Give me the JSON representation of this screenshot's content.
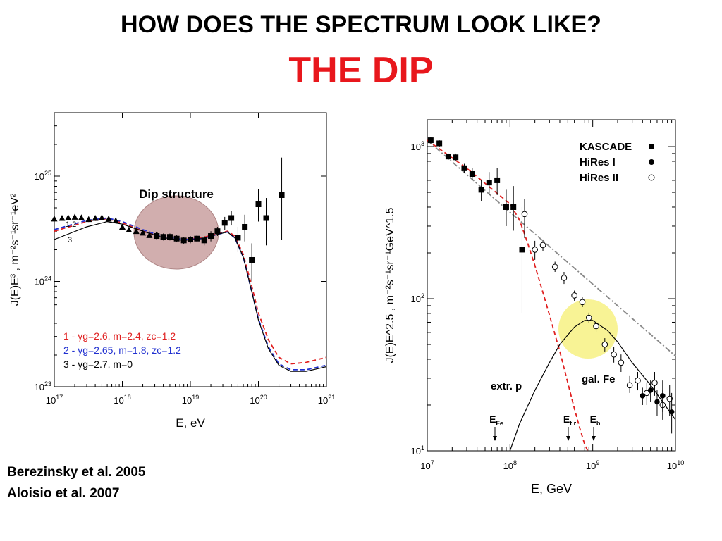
{
  "slide": {
    "title": "HOW DOES THE SPECTRUM LOOK LIKE?",
    "subtitle": "THE DIP",
    "citations": [
      "Berezinsky et al. 2005",
      "Aloisio et al. 2007"
    ]
  },
  "colors": {
    "subtitle": "#e8171c",
    "highlight_left": "#c9a0a0",
    "highlight_right": "#f7f28a",
    "red_curve": "#e02020",
    "blue_curve": "#2030d0"
  },
  "chart_data": [
    {
      "type": "line",
      "xlabel": "E, eV",
      "ylabel": "J(E)E³ , m⁻²s⁻¹sr⁻¹eV²",
      "xscale": "log",
      "yscale": "log",
      "xlim": [
        1e+17,
        1e+21
      ],
      "ylim": [
        1e+23,
        4e+25
      ],
      "x_ticks": [
        "10¹⁷",
        "10¹⁸",
        "10¹⁹",
        "10²⁰",
        "10²¹"
      ],
      "y_ticks": [
        "10²³",
        "10²⁴",
        "10²⁵"
      ],
      "annotation": "Dip structure",
      "curve_labels": [
        "1.2",
        "3"
      ],
      "legend": [
        {
          "name": "1 - γg=2.6, m=2.4, zc=1.2",
          "color": "#e02020"
        },
        {
          "name": "2 - γg=2.65, m=1.8, zc=1.2",
          "color": "#2030d0"
        },
        {
          "name": "3 - γg=2.7, m=0",
          "color": "#000000"
        }
      ],
      "series": [
        {
          "name": "1 - γg=2.6, m=2.4, zc=1.2",
          "style": "dashed",
          "color": "#e02020",
          "points": [
            [
              1e+17,
              3e+24
            ],
            [
              3e+17,
              3.7e+24
            ],
            [
              6e+17,
              3.95e+24
            ],
            [
              1e+18,
              3.6e+24
            ],
            [
              2e+18,
              3e+24
            ],
            [
              4e+18,
              2.6e+24
            ],
            [
              8e+18,
              2.5e+24
            ],
            [
              1.5e+19,
              2.6e+24
            ],
            [
              2.5e+19,
              2.85e+24
            ],
            [
              3.5e+19,
              3e+24
            ],
            [
              4.5e+19,
              2.7e+24
            ],
            [
              6e+19,
              1.8e+24
            ],
            [
              8e+19,
              9e+23
            ],
            [
              1e+20,
              5e+23
            ],
            [
              1.4e+20,
              2.8e+23
            ],
            [
              2e+20,
              1.9e+23
            ],
            [
              3e+20,
              1.65e+23
            ],
            [
              5e+20,
              1.7e+23
            ],
            [
              1e+21,
              1.9e+23
            ]
          ]
        },
        {
          "name": "2 - γg=2.65, m=1.8, zc=1.2",
          "style": "dashed",
          "color": "#2030d0",
          "points": [
            [
              1e+17,
              3.1e+24
            ],
            [
              3e+17,
              3.8e+24
            ],
            [
              6e+17,
              4e+24
            ],
            [
              1e+18,
              3.7e+24
            ],
            [
              2e+18,
              3.1e+24
            ],
            [
              4e+18,
              2.65e+24
            ],
            [
              8e+18,
              2.5e+24
            ],
            [
              1.5e+19,
              2.55e+24
            ],
            [
              2.5e+19,
              2.8e+24
            ],
            [
              3.5e+19,
              2.95e+24
            ],
            [
              4.5e+19,
              2.6e+24
            ],
            [
              6e+19,
              1.7e+24
            ],
            [
              8e+19,
              8e+23
            ],
            [
              1e+20,
              4.4e+23
            ],
            [
              1.4e+20,
              2.4e+23
            ],
            [
              2e+20,
              1.65e+23
            ],
            [
              3e+20,
              1.45e+23
            ],
            [
              5e+20,
              1.45e+23
            ],
            [
              1e+21,
              1.6e+23
            ]
          ]
        },
        {
          "name": "3 - γg=2.7, m=0",
          "style": "solid",
          "color": "#000000",
          "points": [
            [
              1e+17,
              2.5e+24
            ],
            [
              3e+17,
              3.3e+24
            ],
            [
              6e+17,
              3.7e+24
            ],
            [
              1e+18,
              3.5e+24
            ],
            [
              2e+18,
              3e+24
            ],
            [
              4e+18,
              2.6e+24
            ],
            [
              8e+18,
              2.45e+24
            ],
            [
              1.5e+19,
              2.55e+24
            ],
            [
              2.5e+19,
              2.8e+24
            ],
            [
              3.5e+19,
              2.95e+24
            ],
            [
              4.5e+19,
              2.6e+24
            ],
            [
              6e+19,
              1.7e+24
            ],
            [
              8e+19,
              8e+23
            ],
            [
              1e+20,
              4.3e+23
            ],
            [
              1.4e+20,
              2.3e+23
            ],
            [
              2e+20,
              1.6e+23
            ],
            [
              3e+20,
              1.4e+23
            ],
            [
              5e+20,
              1.4e+23
            ],
            [
              1e+21,
              1.55e+23
            ]
          ]
        }
      ],
      "data_triangles": [
        [
          1e+17,
          3.95e+24
        ],
        [
          1.3e+17,
          4e+24
        ],
        [
          1.6e+17,
          4.05e+24
        ],
        [
          2e+17,
          4.1e+24
        ],
        [
          2.5e+17,
          4.05e+24
        ],
        [
          3.2e+17,
          3.9e+24
        ],
        [
          4e+17,
          4e+24
        ],
        [
          5e+17,
          4.05e+24
        ],
        [
          6.3e+17,
          3.95e+24
        ],
        [
          8e+17,
          3.8e+24
        ],
        [
          1e+18,
          3.3e+24
        ],
        [
          1.25e+18,
          3.1e+24
        ],
        [
          1.6e+18,
          3e+24
        ],
        [
          2e+18,
          2.9e+24
        ],
        [
          2.5e+18,
          2.75e+24
        ],
        [
          3.2e+18,
          2.8e+24
        ]
      ],
      "data_squares": [
        {
          "x": 3.2e+18,
          "y": 2.7e+24,
          "lo": 2.5e+24,
          "hi": 2.9e+24
        },
        {
          "x": 4e+18,
          "y": 2.65e+24,
          "lo": 2.45e+24,
          "hi": 2.85e+24
        },
        {
          "x": 5e+18,
          "y": 2.65e+24,
          "lo": 2.45e+24,
          "hi": 2.85e+24
        },
        {
          "x": 6.3e+18,
          "y": 2.55e+24,
          "lo": 2.35e+24,
          "hi": 2.75e+24
        },
        {
          "x": 8e+18,
          "y": 2.45e+24,
          "lo": 2.25e+24,
          "hi": 2.65e+24
        },
        {
          "x": 1e+19,
          "y": 2.5e+24,
          "lo": 2.3e+24,
          "hi": 2.7e+24
        },
        {
          "x": 1.25e+19,
          "y": 2.55e+24,
          "lo": 2.35e+24,
          "hi": 2.75e+24
        },
        {
          "x": 1.6e+19,
          "y": 2.45e+24,
          "lo": 2.2e+24,
          "hi": 2.7e+24
        },
        {
          "x": 2e+19,
          "y": 2.7e+24,
          "lo": 2.4e+24,
          "hi": 3e+24
        },
        {
          "x": 2.5e+19,
          "y": 3e+24,
          "lo": 2.7e+24,
          "hi": 3.3e+24
        },
        {
          "x": 3.2e+19,
          "y": 3.6e+24,
          "lo": 3.1e+24,
          "hi": 4.1e+24
        },
        {
          "x": 4e+19,
          "y": 4e+24,
          "lo": 3.4e+24,
          "hi": 4.7e+24
        },
        {
          "x": 5e+19,
          "y": 2.6e+24,
          "lo": 1.9e+24,
          "hi": 3.3e+24
        },
        {
          "x": 6.3e+19,
          "y": 3.3e+24,
          "lo": 2.4e+24,
          "hi": 4.3e+24
        },
        {
          "x": 8e+19,
          "y": 1.6e+24,
          "lo": 1e+24,
          "hi": 2.3e+24
        },
        {
          "x": 1e+20,
          "y": 5.4e+24,
          "lo": 3.7e+24,
          "hi": 7.5e+24
        },
        {
          "x": 1.3e+20,
          "y": 4e+24,
          "lo": 2.2e+24,
          "hi": 6.2e+24
        },
        {
          "x": 2.2e+20,
          "y": 6.6e+24,
          "lo": 2.5e+24,
          "hi": 1.5e+25
        }
      ]
    },
    {
      "type": "line",
      "xlabel": "E, GeV",
      "ylabel": "J(E)E^2.5 , m⁻²s⁻¹sr⁻¹GeV^1.5",
      "xscale": "log",
      "yscale": "log",
      "xlim": [
        10000000.0,
        10000000000.0
      ],
      "ylim": [
        10,
        1500
      ],
      "x_ticks": [
        "10⁷",
        "10⁸",
        "10⁹",
        "10¹⁰"
      ],
      "y_ticks": [
        "10¹",
        "10²",
        "10³"
      ],
      "legend": [
        {
          "name": "KASCADE",
          "marker": "filled-square"
        },
        {
          "name": "HiRes I",
          "marker": "filled-circle"
        },
        {
          "name": "HiRes II",
          "marker": "open-circle"
        }
      ],
      "annotations": [
        "extr. p",
        "gal. Fe",
        "E_Fe",
        "E_tr",
        "E_b"
      ],
      "series": [
        {
          "name": "power-law",
          "style": "dash-dot",
          "color": "#888888",
          "points": [
            [
              10000000.0,
              1100
            ],
            [
              10000000000.0,
              42
            ]
          ]
        },
        {
          "name": "red dashed",
          "style": "dashed",
          "color": "#e02020",
          "points": [
            [
              10000000.0,
              1100
            ],
            [
              30000000.0,
              720
            ],
            [
              100000000.0,
              420
            ],
            [
              130000000.0,
              330
            ],
            [
              160000000.0,
              240
            ],
            [
              200000000.0,
              165
            ],
            [
              250000000.0,
              110
            ],
            [
              300000000.0,
              78
            ],
            [
              400000000.0,
              45
            ],
            [
              500000000.0,
              28
            ],
            [
              600000000.0,
              19
            ],
            [
              700000000.0,
              14
            ],
            [
              800000000.0,
              11
            ],
            [
              870000000.0,
              10
            ]
          ]
        },
        {
          "name": "gal. Fe",
          "style": "solid",
          "color": "#000000",
          "points": [
            [
              100000000.0,
              10
            ],
            [
              130000000.0,
              15
            ],
            [
              200000000.0,
              25
            ],
            [
              300000000.0,
              38
            ],
            [
              400000000.0,
              50
            ],
            [
              600000000.0,
              65
            ],
            [
              800000000.0,
              72
            ],
            [
              1000000000.0,
              72
            ],
            [
              1500000000.0,
              62
            ],
            [
              2000000000.0,
              52
            ],
            [
              3000000000.0,
              38
            ],
            [
              5000000000.0,
              27
            ],
            [
              7000000000.0,
              21
            ],
            [
              10000000000.0,
              16
            ]
          ]
        }
      ],
      "kascade": [
        {
          "x": 11000000.0,
          "y": 1100,
          "lo": 1050,
          "hi": 1150
        },
        {
          "x": 14000000.0,
          "y": 1050,
          "lo": 1000,
          "hi": 1100
        },
        {
          "x": 18000000.0,
          "y": 860,
          "lo": 820,
          "hi": 900
        },
        {
          "x": 22000000.0,
          "y": 850,
          "lo": 800,
          "hi": 900
        },
        {
          "x": 28000000.0,
          "y": 720,
          "lo": 670,
          "hi": 770
        },
        {
          "x": 35000000.0,
          "y": 660,
          "lo": 600,
          "hi": 720
        },
        {
          "x": 45000000.0,
          "y": 520,
          "lo": 440,
          "hi": 600
        },
        {
          "x": 56000000.0,
          "y": 580,
          "lo": 480,
          "hi": 680
        },
        {
          "x": 70000000.0,
          "y": 600,
          "lo": 480,
          "hi": 720
        },
        {
          "x": 90000000.0,
          "y": 400,
          "lo": 300,
          "hi": 520
        },
        {
          "x": 110000000.0,
          "y": 400,
          "lo": 280,
          "hi": 550
        },
        {
          "x": 140000000.0,
          "y": 210,
          "lo": 80,
          "hi": 400
        }
      ],
      "hires1": [
        {
          "x": 4000000000.0,
          "y": 23,
          "lo": 20,
          "hi": 26
        },
        {
          "x": 5000000000.0,
          "y": 25,
          "lo": 21,
          "hi": 29
        },
        {
          "x": 6000000000.0,
          "y": 21,
          "lo": 17,
          "hi": 25
        },
        {
          "x": 7000000000.0,
          "y": 23,
          "lo": 18,
          "hi": 29
        },
        {
          "x": 9000000000.0,
          "y": 18,
          "lo": 13,
          "hi": 24
        }
      ],
      "hires2": [
        {
          "x": 150000000.0,
          "y": 360,
          "lo": 250,
          "hi": 450
        },
        {
          "x": 200000000.0,
          "y": 210,
          "lo": 180,
          "hi": 240
        },
        {
          "x": 250000000.0,
          "y": 225,
          "lo": 205,
          "hi": 245
        },
        {
          "x": 350000000.0,
          "y": 162,
          "lo": 150,
          "hi": 175
        },
        {
          "x": 450000000.0,
          "y": 137,
          "lo": 125,
          "hi": 150
        },
        {
          "x": 600000000.0,
          "y": 105,
          "lo": 97,
          "hi": 113
        },
        {
          "x": 750000000.0,
          "y": 95,
          "lo": 88,
          "hi": 102
        },
        {
          "x": 900000000.0,
          "y": 75,
          "lo": 69,
          "hi": 81
        },
        {
          "x": 1100000000.0,
          "y": 66,
          "lo": 60,
          "hi": 72
        },
        {
          "x": 1400000000.0,
          "y": 50,
          "lo": 45,
          "hi": 55
        },
        {
          "x": 1800000000.0,
          "y": 43,
          "lo": 38,
          "hi": 48
        },
        {
          "x": 2200000000.0,
          "y": 38,
          "lo": 33,
          "hi": 43
        },
        {
          "x": 2800000000.0,
          "y": 27,
          "lo": 24,
          "hi": 31
        },
        {
          "x": 3500000000.0,
          "y": 29,
          "lo": 25,
          "hi": 33
        },
        {
          "x": 4500000000.0,
          "y": 24,
          "lo": 20,
          "hi": 28
        },
        {
          "x": 5600000000.0,
          "y": 28,
          "lo": 23,
          "hi": 33
        },
        {
          "x": 7000000000.0,
          "y": 20,
          "lo": 16,
          "hi": 25
        },
        {
          "x": 8500000000.0,
          "y": 22,
          "lo": 17,
          "hi": 27
        }
      ]
    }
  ]
}
